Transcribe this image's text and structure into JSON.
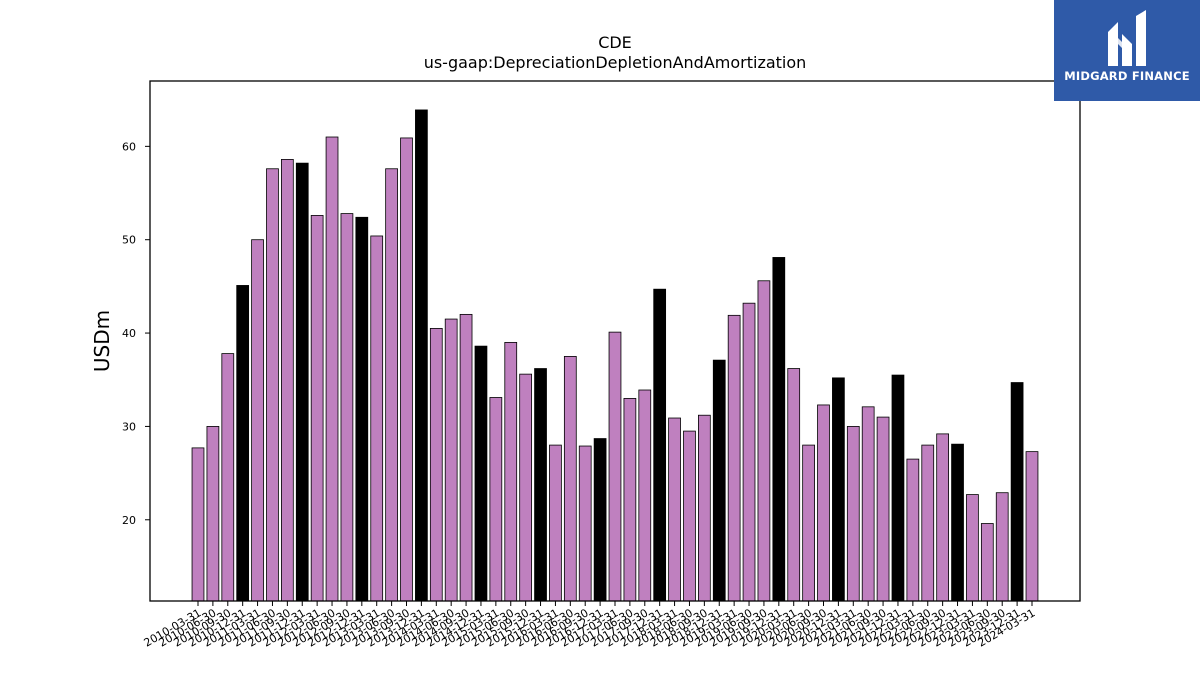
{
  "chart_data": {
    "type": "bar",
    "title": "CDE",
    "subtitle": "us-gaap:DepreciationDepletionAndAmortization",
    "xlabel": "",
    "ylabel": "USDm",
    "ylim": [
      11.3,
      67
    ],
    "yticks": [
      20,
      30,
      40,
      50,
      60
    ],
    "grid": false,
    "colors": {
      "quarter": "#bf80bf",
      "fiscal_year_end": "#000000",
      "edge": "#000000"
    },
    "categories": [
      "2010-03-31",
      "2010-06-30",
      "2010-09-30",
      "2010-12-31",
      "2011-03-31",
      "2011-06-30",
      "2011-09-30",
      "2011-12-31",
      "2012-03-31",
      "2012-06-30",
      "2012-09-30",
      "2012-12-31",
      "2013-03-31",
      "2013-06-30",
      "2013-09-30",
      "2013-12-31",
      "2014-03-31",
      "2014-06-30",
      "2014-09-30",
      "2014-12-31",
      "2015-03-31",
      "2015-06-30",
      "2015-09-30",
      "2015-12-31",
      "2016-03-31",
      "2016-06-30",
      "2016-09-30",
      "2016-12-31",
      "2017-03-31",
      "2017-06-30",
      "2017-09-30",
      "2017-12-31",
      "2018-03-31",
      "2018-06-30",
      "2018-09-30",
      "2018-12-31",
      "2019-03-31",
      "2019-06-30",
      "2019-09-30",
      "2019-12-31",
      "2020-03-31",
      "2020-06-30",
      "2020-09-30",
      "2020-12-31",
      "2021-03-31",
      "2021-06-30",
      "2021-09-30",
      "2021-12-31",
      "2022-03-31",
      "2022-06-30",
      "2022-09-30",
      "2022-12-31",
      "2023-03-31",
      "2023-06-30",
      "2023-09-30",
      "2023-12-31",
      "2024-03-31"
    ],
    "values": [
      27.7,
      30.0,
      37.8,
      45.1,
      50.0,
      57.6,
      58.6,
      58.2,
      52.6,
      61.0,
      52.8,
      52.4,
      50.4,
      57.6,
      60.9,
      63.9,
      40.5,
      41.5,
      42.0,
      38.6,
      33.1,
      39.0,
      35.6,
      36.2,
      28.0,
      37.5,
      27.9,
      28.7,
      40.1,
      33.0,
      33.9,
      44.7,
      30.9,
      29.5,
      31.2,
      37.1,
      41.9,
      43.2,
      45.6,
      48.1,
      36.2,
      28.0,
      32.3,
      35.2,
      30.0,
      32.1,
      31.0,
      35.5,
      26.5,
      28.0,
      29.2,
      28.1,
      22.7,
      19.6,
      22.9,
      34.7,
      27.3
    ],
    "highlight": [
      false,
      false,
      false,
      true,
      false,
      false,
      false,
      true,
      false,
      false,
      false,
      true,
      false,
      false,
      false,
      true,
      false,
      false,
      false,
      true,
      false,
      false,
      false,
      true,
      false,
      false,
      false,
      true,
      false,
      false,
      false,
      true,
      false,
      false,
      false,
      true,
      false,
      false,
      false,
      true,
      false,
      false,
      false,
      true,
      false,
      false,
      false,
      true,
      false,
      false,
      false,
      true,
      false,
      false,
      false,
      true,
      false
    ]
  },
  "logo": {
    "text": "MIDGARD FINANCE",
    "background": "#2f5aa8",
    "icon": "midgard-logo-icon"
  }
}
